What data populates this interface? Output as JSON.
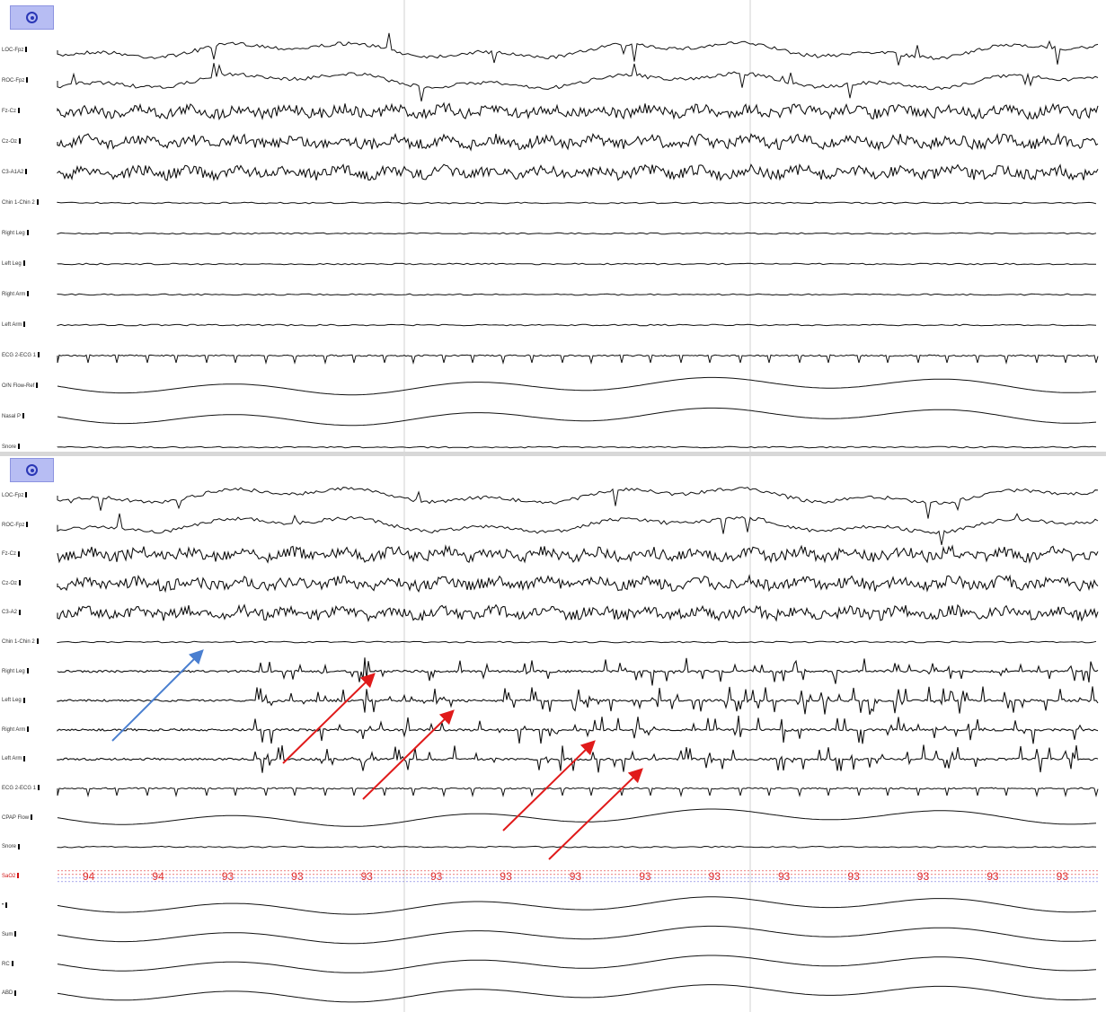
{
  "panels": [
    {
      "channels": [
        {
          "label": "LOC-Fpz",
          "type": "eog"
        },
        {
          "label": "ROC-Fpz",
          "type": "eog"
        },
        {
          "label": "Fz-Cz",
          "type": "eeg"
        },
        {
          "label": "Cz-Oz",
          "type": "eeg"
        },
        {
          "label": "C3-A1A2",
          "type": "eeg"
        },
        {
          "label": "Chin 1-Chin 2",
          "type": "flat"
        },
        {
          "label": "Right Leg",
          "type": "flat"
        },
        {
          "label": "Left Leg",
          "type": "flat"
        },
        {
          "label": "Right Arm",
          "type": "flat"
        },
        {
          "label": "Left Arm",
          "type": "flat"
        },
        {
          "label": "ECG 2-ECG 1",
          "type": "ecg"
        },
        {
          "label": "O/N Flow-Ref",
          "type": "resp"
        },
        {
          "label": "Nasal P",
          "type": "resp"
        },
        {
          "label": "Snore",
          "type": "flat"
        }
      ]
    },
    {
      "channels": [
        {
          "label": "LOC-Fpz",
          "type": "eog"
        },
        {
          "label": "ROC-Fpz",
          "type": "eog"
        },
        {
          "label": "Fz-Cz",
          "type": "eeg"
        },
        {
          "label": "Cz-Oz",
          "type": "eeg"
        },
        {
          "label": "C3-A2",
          "type": "eeg"
        },
        {
          "label": "Chin 1-Chin 2",
          "type": "flat"
        },
        {
          "label": "Right Leg",
          "type": "emg"
        },
        {
          "label": "Left Leg",
          "type": "emg"
        },
        {
          "label": "Right Arm",
          "type": "emg"
        },
        {
          "label": "Left Arm",
          "type": "emg"
        },
        {
          "label": "ECG 2-ECG 1",
          "type": "ecg"
        },
        {
          "label": "CPAP Flow",
          "type": "resp"
        },
        {
          "label": "Snore",
          "type": "flat"
        },
        {
          "label": "SaO2",
          "type": "sao2",
          "color": "#e03030"
        },
        {
          "label": "•",
          "type": "resp"
        },
        {
          "label": "Sum",
          "type": "resp"
        },
        {
          "label": "RC",
          "type": "resp"
        },
        {
          "label": "ABD",
          "type": "resp"
        }
      ]
    }
  ],
  "sao2_values": [
    "94",
    "94",
    "93",
    "93",
    "93",
    "93",
    "93",
    "93",
    "93",
    "93",
    "93",
    "93",
    "93",
    "93",
    "93"
  ],
  "colors": {
    "trace": "#111111",
    "sao2": "#e03030",
    "button": "#b7bdf3",
    "arrow_red": "#e01a1a",
    "arrow_blue": "#4a7fd0"
  },
  "icons": {
    "panel_button": "target-icon"
  }
}
